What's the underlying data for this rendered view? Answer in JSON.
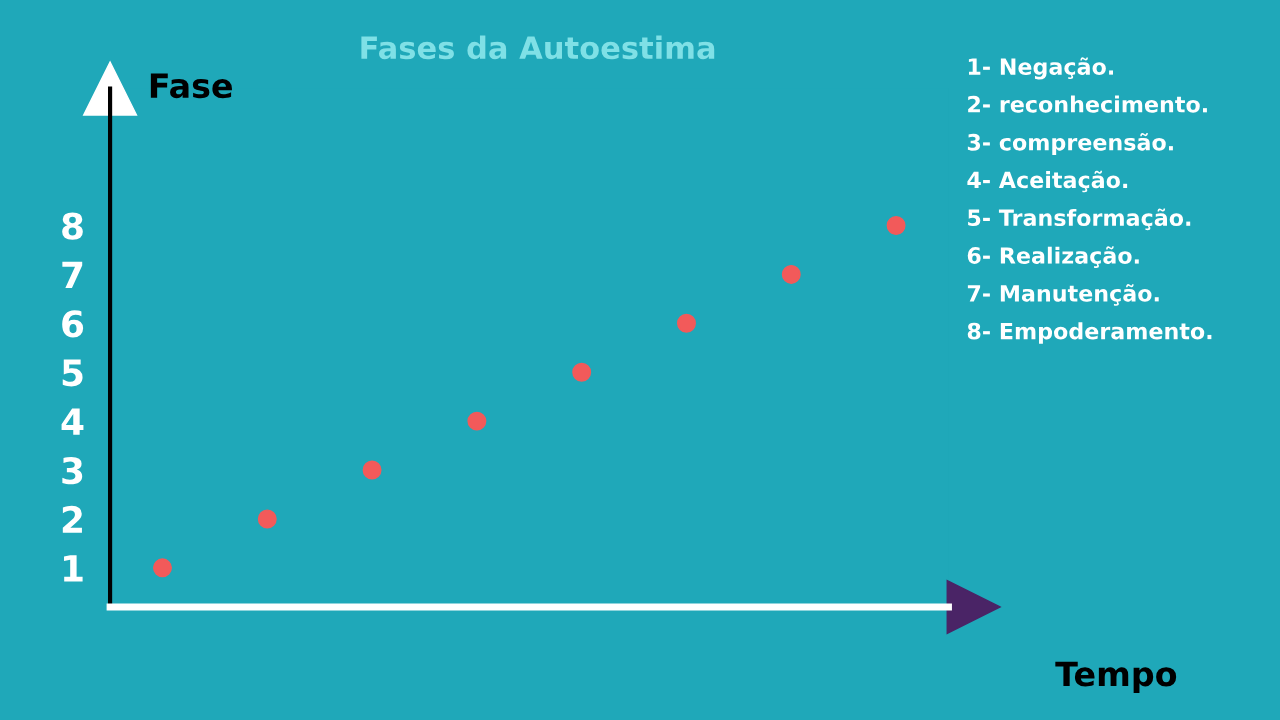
{
  "chart_data": {
    "type": "scatter",
    "title": "Fases da Autoestima",
    "xlabel": "Tempo",
    "ylabel": "Fase",
    "categories": [
      null,
      null,
      null,
      null,
      null,
      null,
      null,
      null
    ],
    "values": [
      1,
      2,
      3,
      4,
      5,
      6,
      7,
      8
    ],
    "color": "#f25a5a",
    "marker": "circle",
    "ylim": [
      0.2,
      10.8
    ],
    "yticks": [
      1,
      2,
      3,
      4,
      5,
      6,
      7,
      8
    ],
    "tick_labels": "y",
    "grid": false,
    "legend": false,
    "annotations": [
      "1- Negação.",
      "2- reconhecimento.",
      "3- compreensão.",
      "4- Aceitação.",
      "5- Transformação.",
      "6- Realização.",
      "7- Manutenção.",
      "8- Empoderamento."
    ]
  }
}
